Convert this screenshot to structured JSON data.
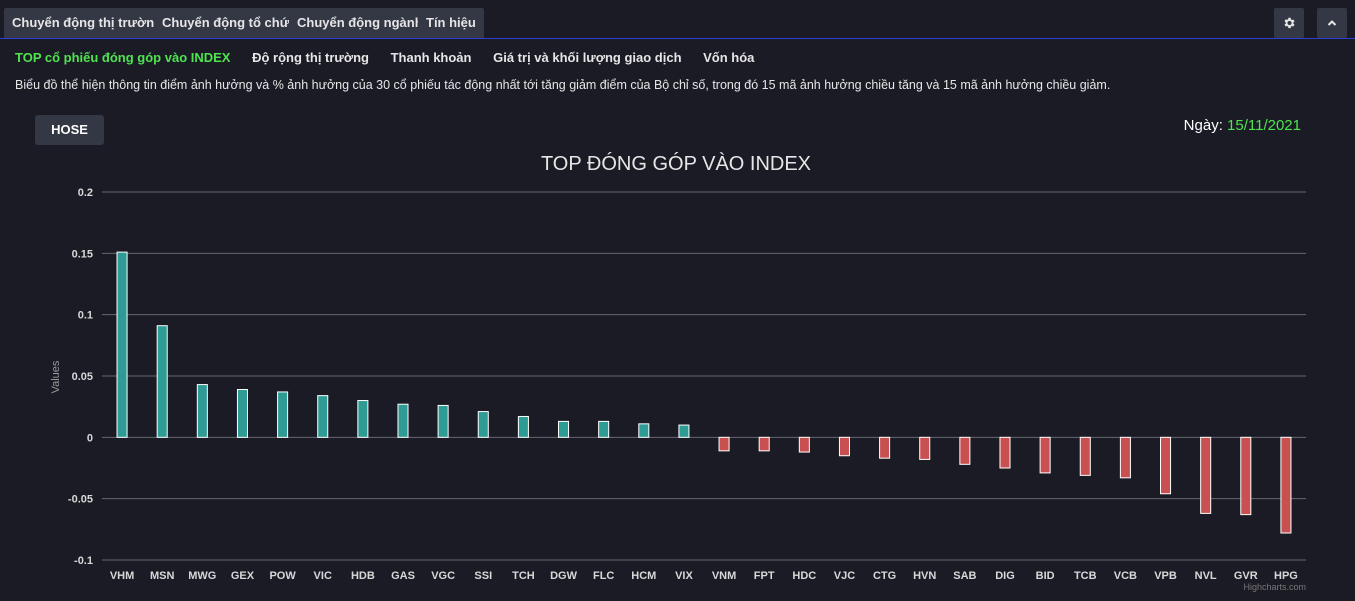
{
  "tabs": [
    {
      "label": "Chuyển động thị trường",
      "active": true
    },
    {
      "label": "Chuyển động tổ chức",
      "active": false
    },
    {
      "label": "Chuyển động ngành",
      "active": false
    },
    {
      "label": "Tín hiệu",
      "active": false
    }
  ],
  "toolbar": {
    "settings_icon": "gear-icon",
    "collapse_icon": "chevron-up-icon"
  },
  "subnav": [
    {
      "label": "TOP cổ phiếu đóng góp vào INDEX",
      "active": true
    },
    {
      "label": "Độ rộng thị trường",
      "active": false
    },
    {
      "label": "Thanh khoản",
      "active": false
    },
    {
      "label": "Giá trị và khối lượng giao dịch",
      "active": false
    },
    {
      "label": "Vốn hóa",
      "active": false
    }
  ],
  "description": "Biểu đồ thể hiện thông tin điểm ảnh hưởng và % ảnh hưởng của 30 cổ phiếu tác động nhất tới tăng giảm điểm của Bộ chỉ số, trong đó 15 mã ảnh hưởng chiều tăng và 15 mã ảnh hưởng chiều giảm.",
  "exchange_button": "HOSE",
  "date": {
    "label": "Ngày:",
    "value": "15/11/2021"
  },
  "colors": {
    "positive": "#2e9c94",
    "negative": "#c85050",
    "accent": "#2432d9",
    "highlight": "#4ee44e"
  },
  "chart_data": {
    "type": "bar",
    "title": "TOP ĐÓNG GÓP VÀO INDEX",
    "xlabel": "",
    "ylabel": "Values",
    "ylim": [
      -0.1,
      0.2
    ],
    "yticks": [
      {
        "value": 0.2,
        "label": "0.2"
      },
      {
        "value": 0.15,
        "label": "0.15"
      },
      {
        "value": 0.1,
        "label": "0.1"
      },
      {
        "value": 0.05,
        "label": "0.05"
      },
      {
        "value": 0,
        "label": "0"
      },
      {
        "value": -0.05,
        "label": "-0.05"
      },
      {
        "value": -0.1,
        "label": "-0.1"
      }
    ],
    "grid": true,
    "legend": "none",
    "credit": "Highcharts.com",
    "categories": [
      "VHM",
      "MSN",
      "MWG",
      "GEX",
      "POW",
      "VIC",
      "HDB",
      "GAS",
      "VGC",
      "SSI",
      "TCH",
      "DGW",
      "FLC",
      "HCM",
      "VIX",
      "VNM",
      "FPT",
      "HDC",
      "VJC",
      "CTG",
      "HVN",
      "SAB",
      "DIG",
      "BID",
      "TCB",
      "VCB",
      "VPB",
      "NVL",
      "GVR",
      "HPG"
    ],
    "values": [
      0.151,
      0.091,
      0.043,
      0.039,
      0.037,
      0.034,
      0.03,
      0.027,
      0.026,
      0.021,
      0.017,
      0.013,
      0.013,
      0.011,
      0.01,
      -0.011,
      -0.011,
      -0.012,
      -0.015,
      -0.017,
      -0.018,
      -0.022,
      -0.025,
      -0.029,
      -0.031,
      -0.033,
      -0.046,
      -0.062,
      -0.063,
      -0.078
    ]
  }
}
